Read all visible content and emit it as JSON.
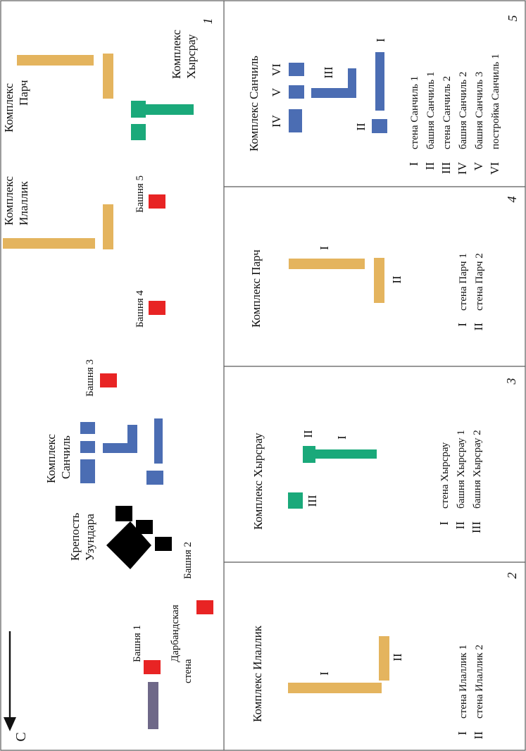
{
  "colors": {
    "wall": "#E4B45E",
    "sanchil": "#4B6DB3",
    "khyrsrau": "#1AA97A",
    "tower": "#E82424",
    "fortress": "#000000",
    "darband": "#6E6888",
    "frame": "#5B5B5B"
  },
  "panel_numbers": [
    "1",
    "2",
    "3",
    "4",
    "5"
  ],
  "overview": {
    "north_label": "С",
    "tower_1": "Башня 1",
    "tower_2": "Башня 2",
    "tower_3": "Башня 3",
    "tower_4": "Башня 4",
    "tower_5": "Башня 5",
    "darband_line1": "Дарбандская",
    "darband_line2": "стена",
    "fortress_line1": "Крепость",
    "fortress_line2": "Узундара",
    "sanchil_line1": "Комплекс",
    "sanchil_line2": "Санчиль",
    "ilallik_line1": "Комплекс",
    "ilallik_line2": "Илаллик",
    "parch_line1": "Комплекс",
    "parch_line2": "Парч",
    "khyrsrau_line1": "Комплекс",
    "khyrsrau_line2": "Хырсрау"
  },
  "panel2": {
    "title": "Комплекс Илаллик",
    "marks": [
      "I",
      "II"
    ],
    "legend": [
      {
        "num": "I",
        "text": "стена Илаллик 1"
      },
      {
        "num": "II",
        "text": "стена Илаллик 2"
      }
    ]
  },
  "panel3": {
    "title": "Комплекс Хырсрау",
    "marks": [
      "I",
      "II",
      "III"
    ],
    "legend": [
      {
        "num": "I",
        "text": "стена Хырсрау"
      },
      {
        "num": "II",
        "text": "башня Хырсрау 1"
      },
      {
        "num": "III",
        "text": "башня Хырсрау 2"
      }
    ]
  },
  "panel4": {
    "title": "Комплекс Парч",
    "marks": [
      "I",
      "II"
    ],
    "legend": [
      {
        "num": "I",
        "text": "стена Парч 1"
      },
      {
        "num": "II",
        "text": "стена Парч 2"
      }
    ]
  },
  "panel5": {
    "title": "Комплекс Санчиль",
    "marks": [
      "I",
      "II",
      "III",
      "IV",
      "V",
      "VI"
    ],
    "legend": [
      {
        "num": "I",
        "text": "стена Санчиль 1"
      },
      {
        "num": "II",
        "text": "башня Санчиль 1"
      },
      {
        "num": "III",
        "text": "стена Санчиль 2"
      },
      {
        "num": "IV",
        "text": "башня Санчиль 2"
      },
      {
        "num": "V",
        "text": "башня Санчиль 3"
      },
      {
        "num": "VI",
        "text": "постройка Санчиль 1"
      }
    ]
  }
}
